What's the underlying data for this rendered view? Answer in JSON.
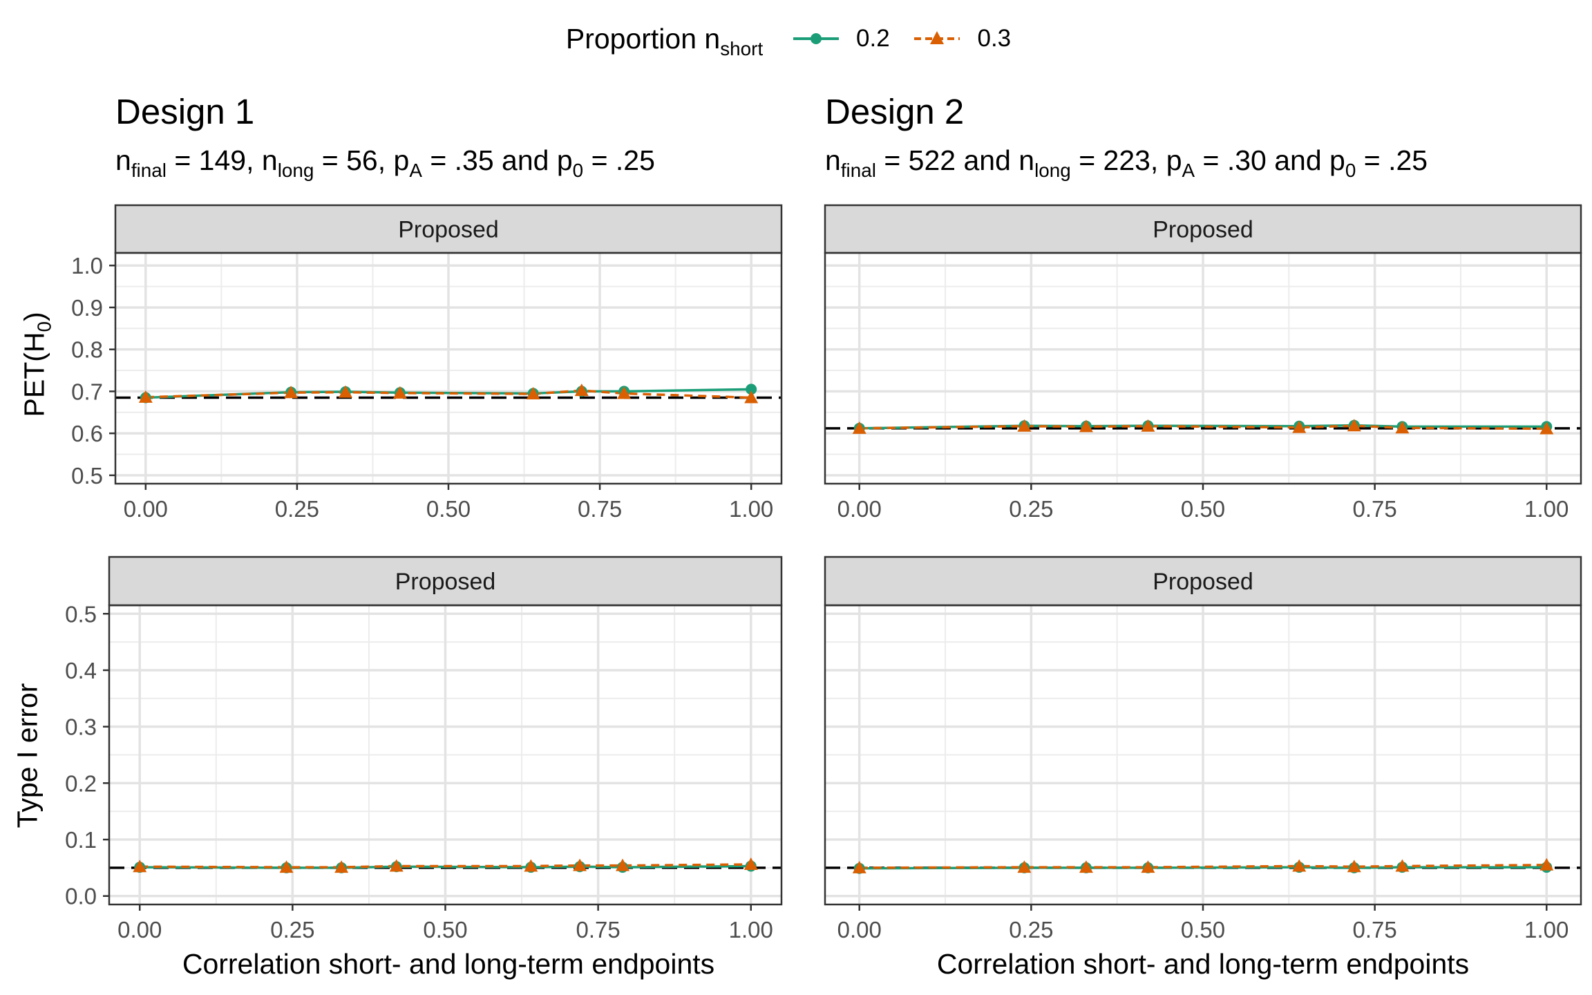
{
  "legend": {
    "title_main": "Proportion n",
    "title_sub": "short",
    "items": [
      {
        "label": "0.2",
        "color": "#1B9E77",
        "linetype": "solid",
        "marker": "circle"
      },
      {
        "label": "0.3",
        "color": "#D95F02",
        "linetype": "dashed",
        "marker": "triangle"
      }
    ]
  },
  "designs": [
    {
      "title": "Design 1",
      "subtitle": {
        "nfinal_prefix": "n",
        "nfinal_sub": "final",
        "nfinal_rest": " = 149, ",
        "nlong_prefix": "n",
        "nlong_sub": "long",
        "nlong_rest": " = 56, ",
        "pA_prefix": "p",
        "pA_sub": "A",
        "pA_rest": " = .35 and ",
        "p0_prefix": "p",
        "p0_sub": "0",
        "p0_rest": " = .25"
      }
    },
    {
      "title": "Design 2",
      "subtitle": {
        "nfinal_prefix": "n",
        "nfinal_sub": "final",
        "nfinal_rest": " = 522 and ",
        "nlong_prefix": "n",
        "nlong_sub": "long",
        "nlong_rest": " = 223, ",
        "pA_prefix": "p",
        "pA_sub": "A",
        "pA_rest": " = .30 and ",
        "p0_prefix": "p",
        "p0_sub": "0",
        "p0_rest": " = .25"
      }
    }
  ],
  "axis_labels": {
    "y_top_main": "PET(H",
    "y_top_sub": "0",
    "y_top_close": ")",
    "y_bottom": "Type I error",
    "x": "Correlation short- and long-term endpoints"
  },
  "chart_data": [
    {
      "type": "line",
      "strip": "Proposed",
      "xlim": [
        -0.05,
        1.05
      ],
      "ylim": [
        0.48,
        1.03
      ],
      "xticks": [
        0.0,
        0.25,
        0.5,
        0.75,
        1.0
      ],
      "xtick_labels": [
        "0.00",
        "0.25",
        "0.50",
        "0.75",
        "1.00"
      ],
      "yticks": [
        0.5,
        0.6,
        0.7,
        0.8,
        0.9,
        1.0
      ],
      "ytick_labels": [
        "0.5",
        "0.6",
        "0.7",
        "0.8",
        "0.9",
        "1.0"
      ],
      "show_yticks": true,
      "hline": 0.685,
      "grid": true,
      "series": [
        {
          "name": "0.2",
          "x": [
            0.0,
            0.24,
            0.33,
            0.42,
            0.64,
            0.72,
            0.79,
            1.0
          ],
          "y": [
            0.685,
            0.698,
            0.699,
            0.697,
            0.695,
            0.7,
            0.7,
            0.705
          ]
        },
        {
          "name": "0.3",
          "x": [
            0.0,
            0.24,
            0.33,
            0.42,
            0.64,
            0.72,
            0.79,
            1.0
          ],
          "y": [
            0.686,
            0.697,
            0.698,
            0.696,
            0.694,
            0.702,
            0.695,
            0.685
          ]
        }
      ]
    },
    {
      "type": "line",
      "strip": "Proposed",
      "xlim": [
        -0.05,
        1.05
      ],
      "ylim": [
        0.48,
        1.03
      ],
      "xticks": [
        0.0,
        0.25,
        0.5,
        0.75,
        1.0
      ],
      "xtick_labels": [
        "0.00",
        "0.25",
        "0.50",
        "0.75",
        "1.00"
      ],
      "yticks": [
        0.5,
        0.6,
        0.7,
        0.8,
        0.9,
        1.0
      ],
      "ytick_labels": [],
      "show_yticks": false,
      "hline": 0.612,
      "grid": true,
      "series": [
        {
          "name": "0.2",
          "x": [
            0.0,
            0.24,
            0.33,
            0.42,
            0.64,
            0.72,
            0.79,
            1.0
          ],
          "y": [
            0.612,
            0.618,
            0.617,
            0.618,
            0.617,
            0.619,
            0.616,
            0.616
          ]
        },
        {
          "name": "0.3",
          "x": [
            0.0,
            0.24,
            0.33,
            0.42,
            0.64,
            0.72,
            0.79,
            1.0
          ],
          "y": [
            0.612,
            0.617,
            0.616,
            0.617,
            0.614,
            0.618,
            0.613,
            0.611
          ]
        }
      ]
    },
    {
      "type": "line",
      "strip": "Proposed",
      "xlim": [
        -0.05,
        1.05
      ],
      "ylim": [
        -0.015,
        0.515
      ],
      "xticks": [
        0.0,
        0.25,
        0.5,
        0.75,
        1.0
      ],
      "xtick_labels": [
        "0.00",
        "0.25",
        "0.50",
        "0.75",
        "1.00"
      ],
      "yticks": [
        0.0,
        0.1,
        0.2,
        0.3,
        0.4,
        0.5
      ],
      "ytick_labels": [
        "0.0",
        "0.1",
        "0.2",
        "0.3",
        "0.4",
        "0.5"
      ],
      "show_yticks": true,
      "hline": 0.05,
      "grid": true,
      "series": [
        {
          "name": "0.2",
          "x": [
            0.0,
            0.24,
            0.33,
            0.42,
            0.64,
            0.72,
            0.79,
            1.0
          ],
          "y": [
            0.051,
            0.05,
            0.05,
            0.052,
            0.051,
            0.052,
            0.051,
            0.053
          ]
        },
        {
          "name": "0.3",
          "x": [
            0.0,
            0.24,
            0.33,
            0.42,
            0.64,
            0.72,
            0.79,
            1.0
          ],
          "y": [
            0.052,
            0.051,
            0.051,
            0.053,
            0.053,
            0.054,
            0.054,
            0.056
          ]
        }
      ]
    },
    {
      "type": "line",
      "strip": "Proposed",
      "xlim": [
        -0.05,
        1.05
      ],
      "ylim": [
        -0.015,
        0.515
      ],
      "xticks": [
        0.0,
        0.25,
        0.5,
        0.75,
        1.0
      ],
      "xtick_labels": [
        "0.00",
        "0.25",
        "0.50",
        "0.75",
        "1.00"
      ],
      "yticks": [
        0.0,
        0.1,
        0.2,
        0.3,
        0.4,
        0.5
      ],
      "ytick_labels": [],
      "show_yticks": false,
      "hline": 0.05,
      "grid": true,
      "series": [
        {
          "name": "0.2",
          "x": [
            0.0,
            0.24,
            0.33,
            0.42,
            0.64,
            0.72,
            0.79,
            1.0
          ],
          "y": [
            0.049,
            0.05,
            0.05,
            0.05,
            0.051,
            0.05,
            0.051,
            0.051
          ]
        },
        {
          "name": "0.3",
          "x": [
            0.0,
            0.24,
            0.33,
            0.42,
            0.64,
            0.72,
            0.79,
            1.0
          ],
          "y": [
            0.05,
            0.051,
            0.051,
            0.051,
            0.053,
            0.052,
            0.053,
            0.055
          ]
        }
      ]
    }
  ]
}
